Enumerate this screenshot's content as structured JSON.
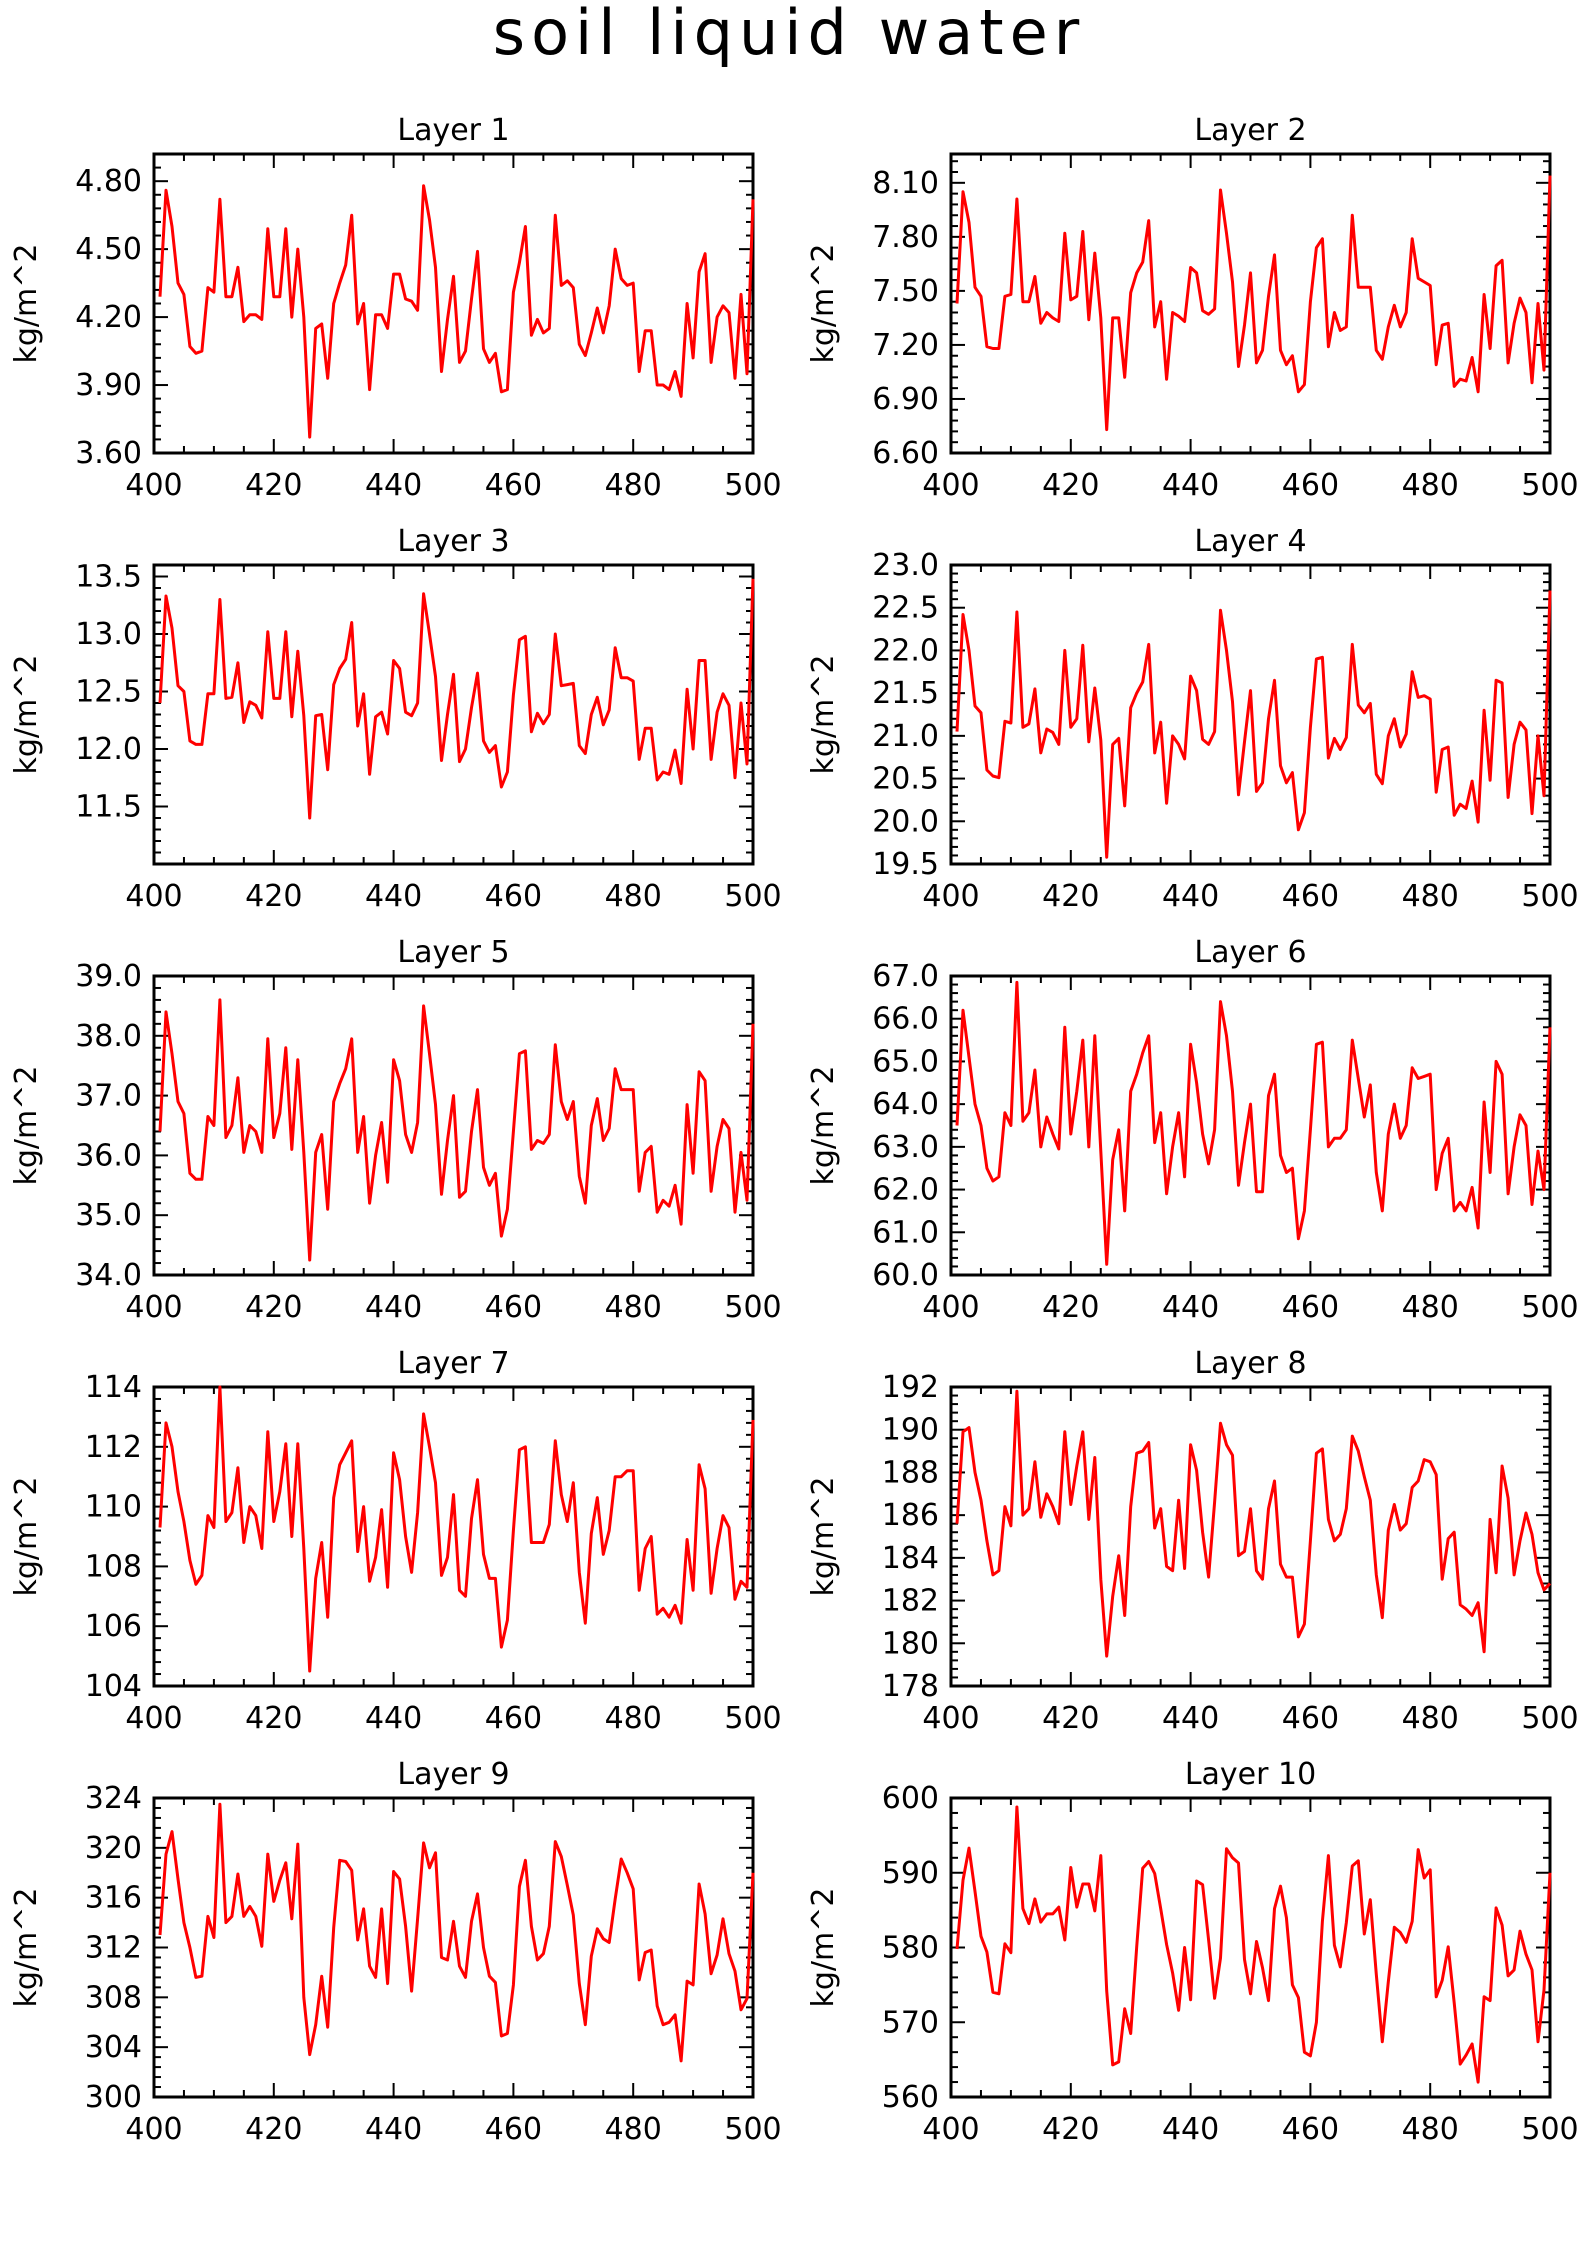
{
  "title": "soil liquid water",
  "colors": {
    "line": "#ff0000",
    "axis": "#000000",
    "background": "#ffffff"
  },
  "chart_data": [
    {
      "type": "line",
      "title": "Layer 1",
      "ylabel": "kg/m^2",
      "xlim": [
        400,
        500
      ],
      "ylim": [
        3.6,
        4.92
      ],
      "xticks": [
        "400",
        "420",
        "440",
        "460",
        "480",
        "500"
      ],
      "yticks": [
        "3.60",
        "3.90",
        "4.20",
        "4.50",
        "4.80"
      ],
      "x_start": 401,
      "values": [
        4.29,
        4.76,
        4.6,
        4.35,
        4.3,
        4.07,
        4.04,
        4.05,
        4.33,
        4.31,
        4.72,
        4.29,
        4.29,
        4.42,
        4.18,
        4.21,
        4.21,
        4.19,
        4.59,
        4.29,
        4.29,
        4.59,
        4.2,
        4.5,
        4.2,
        3.67,
        4.15,
        4.17,
        3.93,
        4.26,
        4.35,
        4.43,
        4.65,
        4.17,
        4.26,
        3.88,
        4.21,
        4.21,
        4.15,
        4.39,
        4.39,
        4.28,
        4.27,
        4.23,
        4.78,
        4.63,
        4.42,
        3.96,
        4.19,
        4.38,
        4.0,
        4.05,
        4.28,
        4.49,
        4.06,
        4.0,
        4.04,
        3.87,
        3.88,
        4.31,
        4.44,
        4.6,
        4.12,
        4.19,
        4.13,
        4.15,
        4.65,
        4.34,
        4.36,
        4.33,
        4.08,
        4.03,
        4.13,
        4.24,
        4.13,
        4.25,
        4.5,
        4.37,
        4.34,
        4.35,
        3.96,
        4.14,
        4.14,
        3.9,
        3.9,
        3.88,
        3.96,
        3.85,
        4.26,
        4.02,
        4.4,
        4.48,
        4.0,
        4.2,
        4.25,
        4.22,
        3.93,
        4.3,
        3.95,
        4.72
      ]
    },
    {
      "type": "line",
      "title": "Layer 2",
      "ylabel": "kg/m^2",
      "xlim": [
        400,
        500
      ],
      "ylim": [
        6.6,
        8.26
      ],
      "xticks": [
        "400",
        "420",
        "440",
        "460",
        "480",
        "500"
      ],
      "yticks": [
        "6.60",
        "6.90",
        "7.20",
        "7.50",
        "7.80",
        "8.10"
      ],
      "x_start": 401,
      "values": [
        7.43,
        8.05,
        7.88,
        7.52,
        7.47,
        7.19,
        7.18,
        7.18,
        7.47,
        7.48,
        8.01,
        7.44,
        7.44,
        7.58,
        7.32,
        7.38,
        7.35,
        7.33,
        7.82,
        7.45,
        7.47,
        7.83,
        7.34,
        7.71,
        7.35,
        6.73,
        7.35,
        7.35,
        7.02,
        7.49,
        7.6,
        7.66,
        7.89,
        7.3,
        7.44,
        7.01,
        7.38,
        7.36,
        7.33,
        7.63,
        7.6,
        7.39,
        7.37,
        7.4,
        8.06,
        7.82,
        7.55,
        7.08,
        7.31,
        7.6,
        7.1,
        7.17,
        7.47,
        7.7,
        7.17,
        7.09,
        7.14,
        6.94,
        6.98,
        7.44,
        7.74,
        7.79,
        7.19,
        7.38,
        7.28,
        7.3,
        7.92,
        7.52,
        7.52,
        7.52,
        7.17,
        7.12,
        7.3,
        7.42,
        7.3,
        7.38,
        7.79,
        7.57,
        7.55,
        7.53,
        7.09,
        7.31,
        7.32,
        6.97,
        7.01,
        7.0,
        7.13,
        6.94,
        7.48,
        7.18,
        7.64,
        7.67,
        7.1,
        7.32,
        7.46,
        7.38,
        6.99,
        7.43,
        7.06,
        8.14
      ]
    },
    {
      "type": "line",
      "title": "Layer 3",
      "ylabel": "kg/m^2",
      "xlim": [
        400,
        500
      ],
      "ylim": [
        11.0,
        13.6
      ],
      "xticks": [
        "400",
        "420",
        "440",
        "460",
        "480",
        "500"
      ],
      "yticks": [
        "11.5",
        "12.0",
        "12.5",
        "13.0",
        "13.5"
      ],
      "x_start": 401,
      "values": [
        12.4,
        13.33,
        13.05,
        12.55,
        12.5,
        12.07,
        12.04,
        12.04,
        12.48,
        12.48,
        13.3,
        12.44,
        12.45,
        12.75,
        12.23,
        12.41,
        12.38,
        12.27,
        13.02,
        12.44,
        12.44,
        13.02,
        12.28,
        12.85,
        12.29,
        11.4,
        12.29,
        12.3,
        11.82,
        12.56,
        12.7,
        12.78,
        13.1,
        12.2,
        12.48,
        11.78,
        12.28,
        12.32,
        12.13,
        12.77,
        12.7,
        12.32,
        12.29,
        12.4,
        13.35,
        13.0,
        12.63,
        11.9,
        12.3,
        12.65,
        11.89,
        12.0,
        12.36,
        12.66,
        12.07,
        11.97,
        12.03,
        11.67,
        11.8,
        12.47,
        12.95,
        12.98,
        12.15,
        12.31,
        12.22,
        12.3,
        13.0,
        12.55,
        12.56,
        12.57,
        12.03,
        11.96,
        12.3,
        12.45,
        12.21,
        12.34,
        12.88,
        12.62,
        12.62,
        12.59,
        11.91,
        12.18,
        12.18,
        11.73,
        11.8,
        11.78,
        11.99,
        11.7,
        12.52,
        12.0,
        12.77,
        12.77,
        11.91,
        12.32,
        12.48,
        12.38,
        11.75,
        12.4,
        11.87,
        13.48
      ]
    },
    {
      "type": "line",
      "title": "Layer 4",
      "ylabel": "kg/m^2",
      "xlim": [
        400,
        500
      ],
      "ylim": [
        19.5,
        23.0
      ],
      "xticks": [
        "400",
        "420",
        "440",
        "460",
        "480",
        "500"
      ],
      "yticks": [
        "19.5",
        "20.0",
        "20.5",
        "21.0",
        "21.5",
        "22.0",
        "22.5",
        "23.0"
      ],
      "x_start": 401,
      "values": [
        21.05,
        22.42,
        22.0,
        21.35,
        21.27,
        20.6,
        20.53,
        20.51,
        21.17,
        21.15,
        22.45,
        21.1,
        21.14,
        21.55,
        20.8,
        21.08,
        21.04,
        20.9,
        22.0,
        21.1,
        21.2,
        22.06,
        20.93,
        21.56,
        20.95,
        19.58,
        20.9,
        20.97,
        20.18,
        21.33,
        21.5,
        21.63,
        22.07,
        20.8,
        21.16,
        20.21,
        21.0,
        20.9,
        20.73,
        21.7,
        21.53,
        20.96,
        20.9,
        21.05,
        22.47,
        22.0,
        21.4,
        20.31,
        20.93,
        21.53,
        20.35,
        20.45,
        21.2,
        21.65,
        20.65,
        20.45,
        20.57,
        19.9,
        20.1,
        21.1,
        21.9,
        21.92,
        20.74,
        20.97,
        20.84,
        20.98,
        22.07,
        21.36,
        21.27,
        21.38,
        20.55,
        20.44,
        21.0,
        21.2,
        20.87,
        21.02,
        21.75,
        21.45,
        21.47,
        21.43,
        20.34,
        20.84,
        20.87,
        20.07,
        20.2,
        20.15,
        20.47,
        19.99,
        21.3,
        20.48,
        21.65,
        21.62,
        20.28,
        20.9,
        21.16,
        21.07,
        20.09,
        21.0,
        20.3,
        22.7
      ]
    },
    {
      "type": "line",
      "title": "Layer 5",
      "ylabel": "kg/m^2",
      "xlim": [
        400,
        500
      ],
      "ylim": [
        34.0,
        39.0
      ],
      "xticks": [
        "400",
        "420",
        "440",
        "460",
        "480",
        "500"
      ],
      "yticks": [
        "34.0",
        "35.0",
        "36.0",
        "37.0",
        "38.0",
        "39.0"
      ],
      "x_start": 401,
      "values": [
        36.4,
        38.4,
        37.7,
        36.9,
        36.7,
        35.7,
        35.6,
        35.6,
        36.65,
        36.5,
        38.6,
        36.3,
        36.5,
        37.3,
        36.05,
        36.5,
        36.4,
        36.05,
        37.95,
        36.3,
        36.7,
        37.8,
        36.1,
        37.6,
        36.05,
        34.25,
        36.05,
        36.35,
        35.1,
        36.9,
        37.2,
        37.45,
        37.95,
        36.05,
        36.65,
        35.2,
        36.0,
        36.55,
        35.55,
        37.6,
        37.25,
        36.35,
        36.05,
        36.55,
        38.5,
        37.7,
        36.85,
        35.35,
        36.25,
        37.0,
        35.3,
        35.4,
        36.4,
        37.1,
        35.8,
        35.5,
        35.7,
        34.65,
        35.1,
        36.4,
        37.7,
        37.75,
        36.1,
        36.25,
        36.2,
        36.35,
        37.85,
        36.9,
        36.6,
        36.9,
        35.65,
        35.2,
        36.5,
        36.95,
        36.25,
        36.45,
        37.45,
        37.1,
        37.1,
        37.1,
        35.4,
        36.05,
        36.15,
        35.05,
        35.25,
        35.15,
        35.5,
        34.85,
        36.85,
        35.7,
        37.4,
        37.25,
        35.4,
        36.15,
        36.6,
        36.45,
        35.05,
        36.05,
        35.25,
        38.2
      ]
    },
    {
      "type": "line",
      "title": "Layer 6",
      "ylabel": "kg/m^2",
      "xlim": [
        400,
        500
      ],
      "ylim": [
        60.0,
        67.0
      ],
      "xticks": [
        "400",
        "420",
        "440",
        "460",
        "480",
        "500"
      ],
      "yticks": [
        "60.0",
        "61.0",
        "62.0",
        "63.0",
        "64.0",
        "65.0",
        "66.0",
        "67.0"
      ],
      "x_start": 401,
      "values": [
        63.5,
        66.2,
        65.1,
        64.0,
        63.5,
        62.5,
        62.2,
        62.3,
        63.8,
        63.5,
        66.85,
        63.6,
        63.8,
        64.8,
        63.0,
        63.7,
        63.3,
        62.95,
        65.8,
        63.3,
        64.3,
        65.5,
        63.0,
        65.6,
        62.9,
        60.25,
        62.7,
        63.4,
        61.5,
        64.3,
        64.7,
        65.2,
        65.6,
        63.1,
        63.8,
        61.9,
        63.0,
        63.8,
        62.3,
        65.4,
        64.5,
        63.3,
        62.6,
        63.4,
        66.4,
        65.6,
        64.3,
        62.1,
        63.1,
        64.0,
        61.95,
        61.95,
        64.2,
        64.7,
        62.8,
        62.4,
        62.5,
        60.85,
        61.5,
        63.4,
        65.4,
        65.45,
        63.0,
        63.2,
        63.2,
        63.4,
        65.5,
        64.6,
        63.7,
        64.45,
        62.4,
        61.5,
        63.3,
        64.0,
        63.2,
        63.5,
        64.85,
        64.6,
        64.65,
        64.7,
        62.0,
        62.85,
        63.2,
        61.5,
        61.7,
        61.5,
        62.05,
        61.1,
        64.05,
        62.4,
        65.0,
        64.7,
        61.9,
        63.0,
        63.75,
        63.5,
        61.65,
        62.9,
        62.0,
        65.8
      ]
    },
    {
      "type": "line",
      "title": "Layer 7",
      "ylabel": "kg/m^2",
      "xlim": [
        400,
        500
      ],
      "ylim": [
        104,
        114
      ],
      "xticks": [
        "400",
        "420",
        "440",
        "460",
        "480",
        "500"
      ],
      "yticks": [
        "104",
        "106",
        "108",
        "110",
        "112",
        "114"
      ],
      "x_start": 401,
      "values": [
        109.3,
        112.8,
        112.0,
        110.5,
        109.5,
        108.2,
        107.4,
        107.7,
        109.7,
        109.3,
        114.0,
        109.5,
        109.8,
        111.3,
        108.8,
        110.0,
        109.7,
        108.6,
        112.5,
        109.5,
        110.5,
        112.1,
        109.0,
        112.1,
        108.6,
        104.5,
        107.6,
        108.8,
        106.3,
        110.3,
        111.4,
        111.8,
        112.2,
        108.5,
        110.0,
        107.5,
        108.3,
        109.9,
        107.3,
        111.8,
        110.9,
        109.0,
        107.8,
        109.8,
        113.1,
        112.0,
        110.8,
        107.7,
        108.3,
        110.4,
        107.2,
        107.0,
        109.6,
        110.9,
        108.4,
        107.6,
        107.6,
        105.3,
        106.2,
        109.2,
        111.9,
        112.0,
        108.8,
        108.8,
        108.8,
        109.4,
        112.2,
        110.4,
        109.5,
        110.8,
        107.8,
        106.1,
        109.1,
        110.3,
        108.4,
        109.2,
        111.0,
        111.0,
        111.2,
        111.2,
        107.2,
        108.6,
        109.0,
        106.4,
        106.6,
        106.3,
        106.7,
        106.1,
        108.9,
        107.2,
        111.4,
        110.6,
        107.1,
        108.6,
        109.7,
        109.3,
        106.9,
        107.5,
        107.3,
        112.9
      ]
    },
    {
      "type": "line",
      "title": "Layer 8",
      "ylabel": "kg/m^2",
      "xlim": [
        400,
        500
      ],
      "ylim": [
        178,
        192
      ],
      "xticks": [
        "400",
        "420",
        "440",
        "460",
        "480",
        "500"
      ],
      "yticks": [
        "178",
        "180",
        "182",
        "184",
        "186",
        "188",
        "190",
        "192"
      ],
      "x_start": 401,
      "values": [
        185.6,
        189.9,
        190.1,
        188.0,
        186.7,
        184.8,
        183.2,
        183.4,
        186.4,
        185.5,
        191.8,
        186.0,
        186.3,
        188.5,
        185.9,
        187.0,
        186.4,
        185.6,
        189.9,
        186.5,
        188.3,
        189.9,
        185.8,
        188.7,
        183.0,
        179.4,
        182.2,
        184.1,
        181.3,
        186.4,
        188.9,
        189.0,
        189.4,
        185.4,
        186.3,
        183.6,
        183.4,
        186.7,
        183.5,
        189.3,
        188.1,
        185.2,
        183.1,
        186.6,
        190.3,
        189.3,
        188.8,
        184.1,
        184.3,
        186.3,
        183.4,
        183.0,
        186.3,
        187.6,
        183.7,
        183.1,
        183.1,
        180.3,
        180.9,
        184.8,
        188.9,
        189.1,
        185.8,
        184.8,
        185.1,
        186.3,
        189.7,
        189.0,
        187.8,
        186.7,
        183.2,
        181.2,
        185.3,
        186.5,
        185.3,
        185.6,
        187.3,
        187.6,
        188.6,
        188.5,
        187.9,
        183.0,
        184.9,
        185.2,
        181.8,
        181.6,
        181.3,
        181.9,
        179.6,
        185.8,
        183.3,
        188.3,
        186.8,
        183.2,
        184.8,
        186.1,
        185.1,
        183.3,
        182.5,
        182.8
      ]
    },
    {
      "type": "line",
      "title": "Layer 9",
      "ylabel": "kg/m^2",
      "xlim": [
        400,
        500
      ],
      "ylim": [
        300,
        324
      ],
      "xticks": [
        "400",
        "420",
        "440",
        "460",
        "480",
        "500"
      ],
      "yticks": [
        "300",
        "304",
        "308",
        "312",
        "316",
        "320",
        "324"
      ],
      "x_start": 401,
      "values": [
        313.0,
        319.5,
        321.3,
        317.5,
        314.0,
        312.0,
        309.6,
        309.7,
        314.5,
        312.8,
        323.5,
        314.0,
        314.5,
        317.9,
        314.5,
        315.3,
        314.5,
        312.1,
        319.5,
        315.7,
        317.4,
        318.8,
        314.3,
        320.3,
        308.0,
        303.4,
        305.8,
        309.7,
        305.6,
        313.6,
        319.0,
        318.9,
        318.2,
        312.6,
        315.1,
        310.5,
        309.6,
        315.1,
        309.1,
        318.1,
        317.5,
        313.7,
        308.5,
        314.3,
        320.4,
        318.4,
        319.6,
        311.2,
        311.0,
        314.1,
        310.5,
        309.6,
        314.1,
        316.3,
        312.0,
        309.7,
        309.2,
        304.9,
        305.1,
        309.0,
        316.9,
        319.0,
        313.7,
        311.0,
        311.5,
        313.7,
        320.5,
        319.3,
        317.0,
        314.6,
        309.1,
        305.8,
        311.3,
        313.5,
        312.7,
        312.4,
        315.9,
        319.1,
        318.0,
        316.7,
        309.4,
        311.6,
        311.8,
        307.3,
        305.8,
        306.0,
        306.6,
        302.9,
        309.3,
        309.0,
        317.1,
        314.7,
        309.9,
        311.4,
        314.3,
        311.5,
        310.1,
        307.0,
        307.9,
        318.0
      ]
    },
    {
      "type": "line",
      "title": "Layer 10",
      "ylabel": "kg/m^2",
      "xlim": [
        400,
        500
      ],
      "ylim": [
        560,
        600
      ],
      "xticks": [
        "400",
        "420",
        "440",
        "460",
        "480",
        "500"
      ],
      "yticks": [
        "560",
        "570",
        "580",
        "590",
        "600"
      ],
      "x_start": 401,
      "values": [
        579.8,
        589.0,
        593.3,
        587.5,
        581.5,
        579.4,
        574.0,
        573.8,
        580.5,
        579.3,
        598.8,
        585.2,
        583.2,
        586.5,
        583.4,
        584.5,
        584.5,
        585.4,
        581.0,
        590.7,
        585.4,
        588.5,
        588.5,
        584.9,
        592.3,
        574.2,
        564.3,
        564.7,
        571.8,
        568.5,
        580.1,
        590.6,
        591.5,
        589.9,
        585.2,
        580.4,
        576.6,
        571.6,
        580.0,
        573.0,
        588.9,
        588.4,
        581.0,
        573.2,
        578.6,
        593.2,
        592.0,
        591.3,
        578.4,
        573.8,
        580.8,
        577.3,
        572.9,
        585.2,
        588.2,
        584.0,
        575.0,
        573.3,
        566.0,
        565.5,
        570.0,
        583.5,
        592.3,
        580.3,
        577.4,
        583.3,
        590.9,
        591.6,
        581.8,
        586.4,
        576.4,
        567.4,
        575.4,
        582.7,
        582.0,
        580.7,
        583.5,
        593.1,
        589.3,
        590.4,
        573.4,
        575.6,
        580.1,
        572.6,
        564.4,
        565.6,
        567.1,
        562.0,
        573.4,
        572.9,
        585.3,
        583.0,
        576.2,
        577.0,
        582.2,
        579.1,
        577.0,
        567.4,
        574.3,
        590.0
      ]
    }
  ]
}
